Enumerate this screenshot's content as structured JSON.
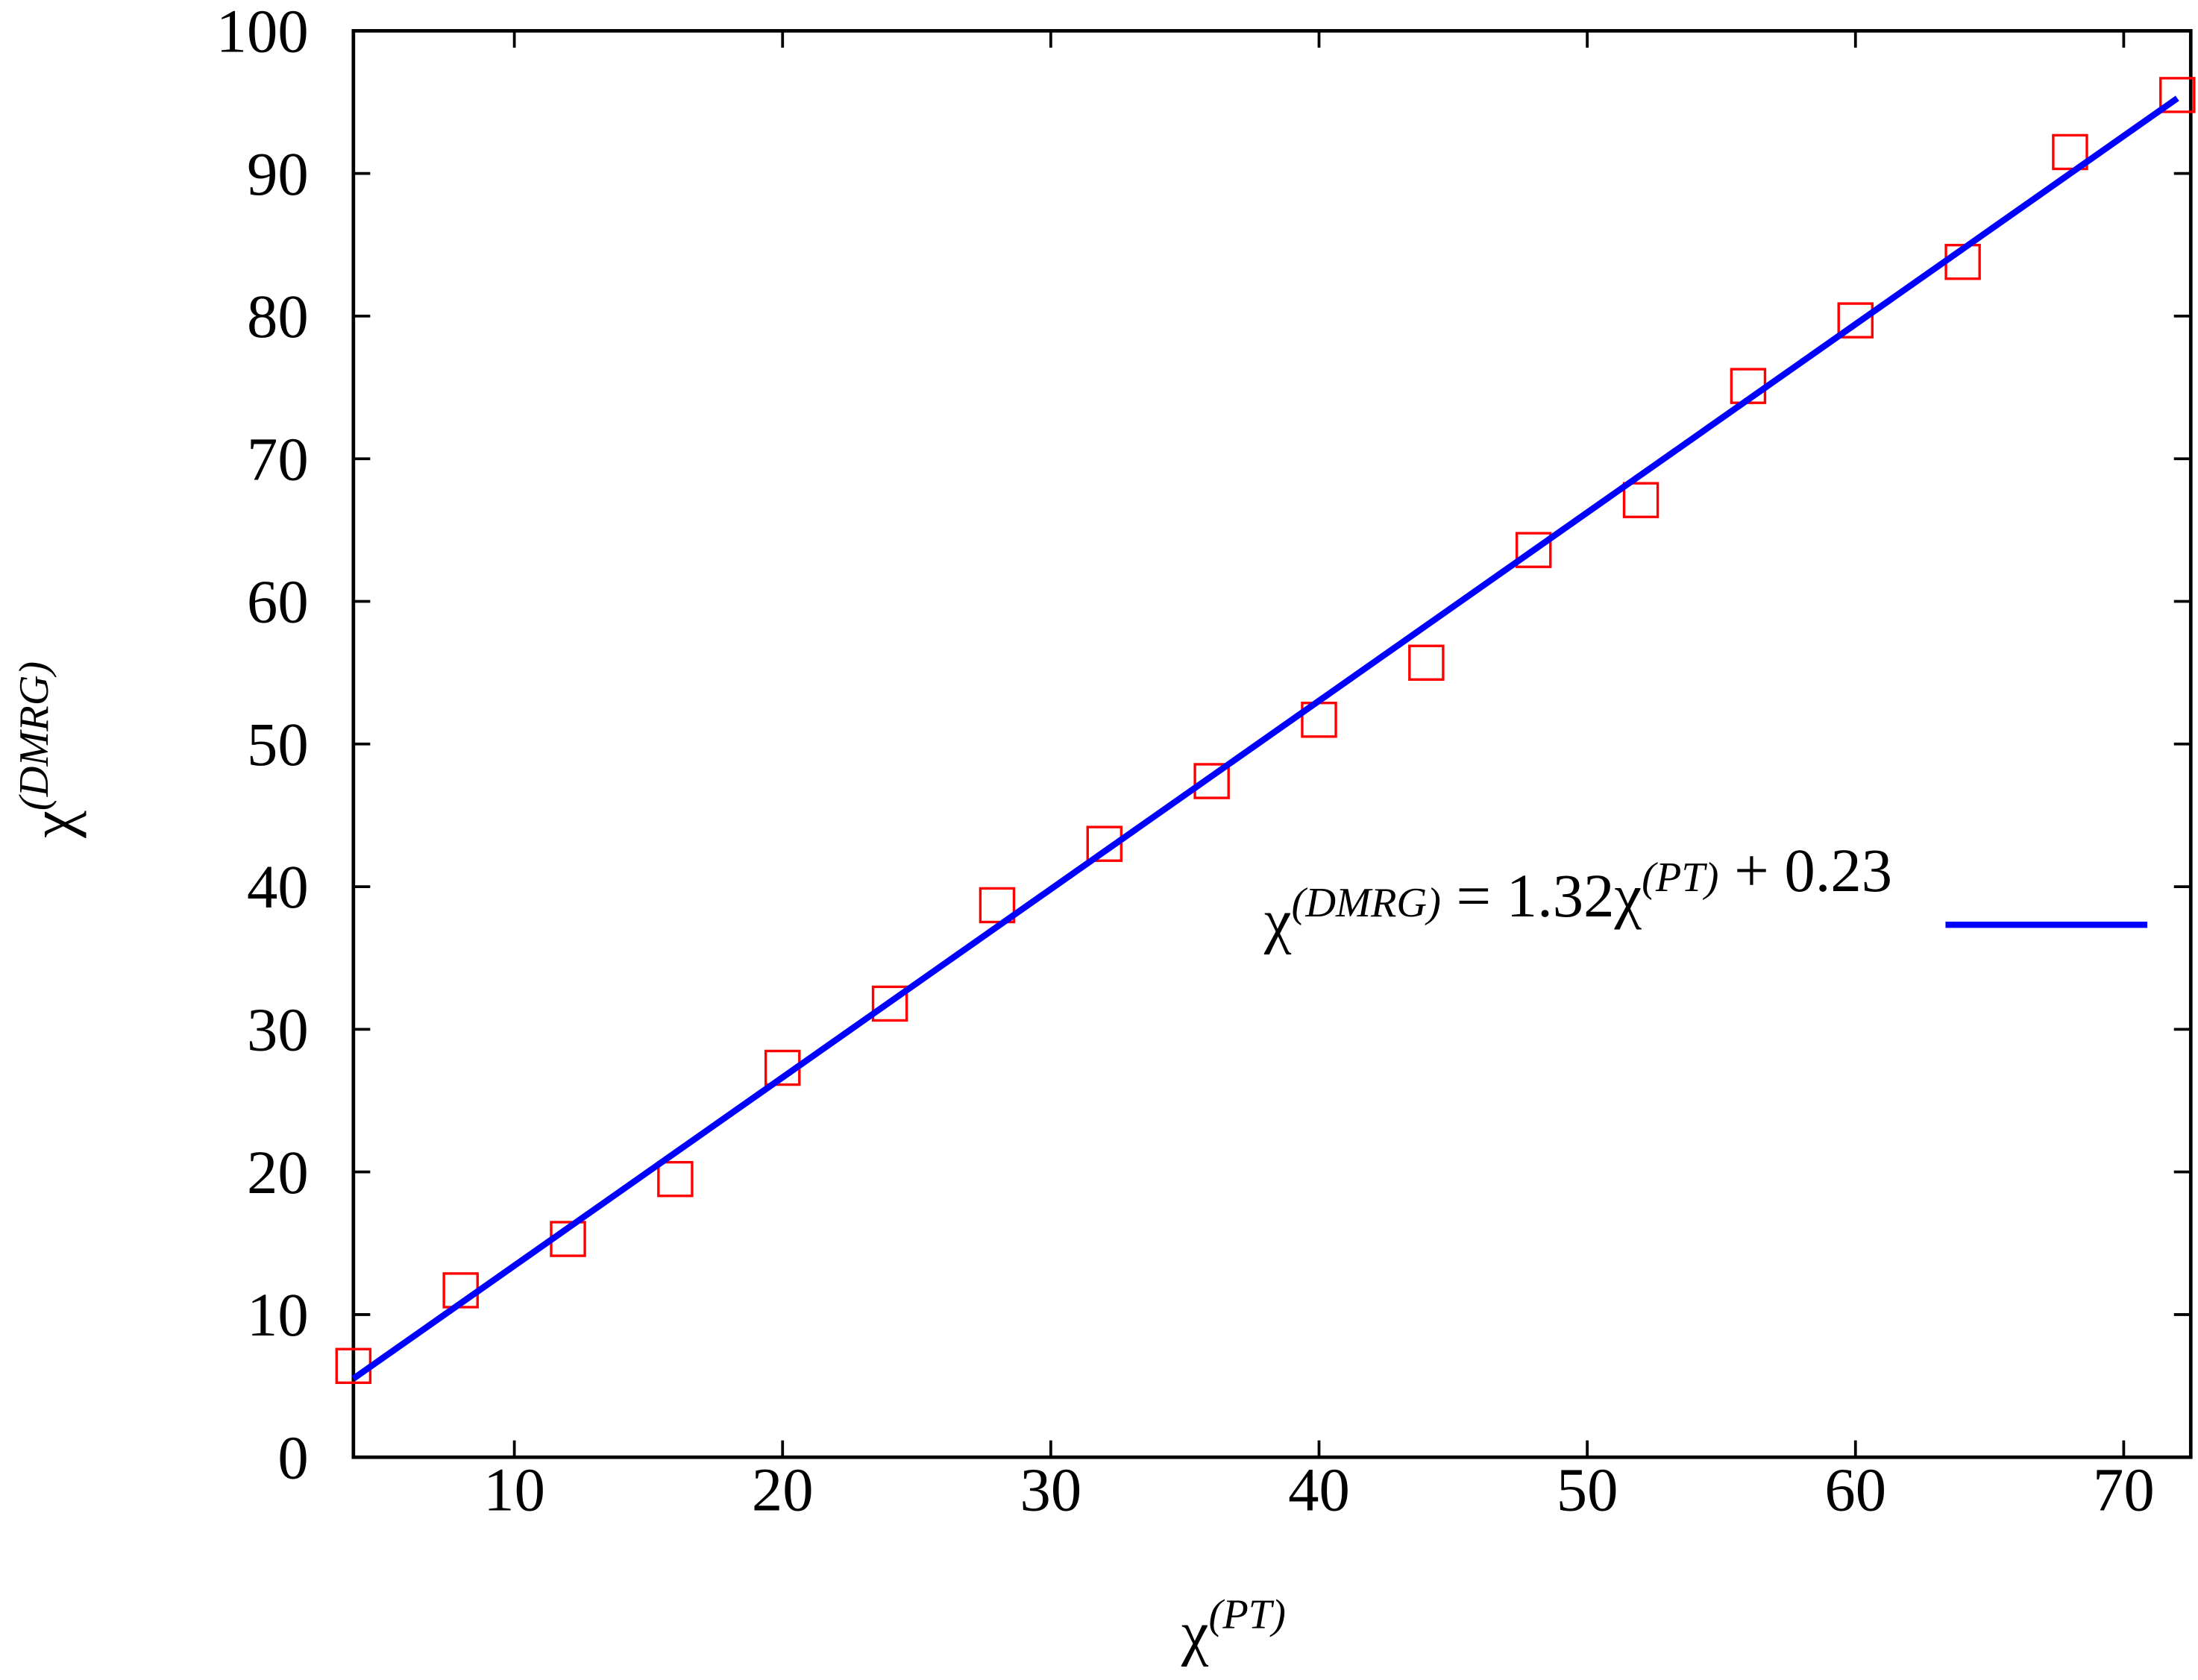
{
  "chart_data": {
    "type": "scatter",
    "x_label": "χ(PT)",
    "y_label": "χ(DMRG)",
    "xlim": [
      4,
      72.5
    ],
    "ylim": [
      0,
      100
    ],
    "xticks": [
      10,
      20,
      30,
      40,
      50,
      60,
      70
    ],
    "yticks": [
      0,
      10,
      20,
      30,
      40,
      50,
      60,
      70,
      80,
      90,
      100
    ],
    "grid": false,
    "legend": "right",
    "x": [
      4,
      8,
      12,
      16,
      20,
      24,
      28,
      32,
      36,
      40,
      44,
      48,
      52,
      56,
      60,
      64,
      68,
      72
    ],
    "series": [
      {
        "color": "#ff0000",
        "marker": "square",
        "values": [
          6.4,
          11.7,
          15.3,
          19.5,
          27.3,
          31.8,
          38.7,
          43.0,
          47.4,
          51.7,
          55.7,
          63.6,
          67.1,
          75.1,
          79.7,
          83.8,
          91.5,
          95.5
        ]
      },
      {
        "name": "χ(DMRG) = 1.32χ(PT) + 0.23",
        "color": "#0000ff",
        "type": "line",
        "x": [
          4,
          72
        ],
        "values": [
          5.51,
          95.27
        ]
      }
    ]
  }
}
